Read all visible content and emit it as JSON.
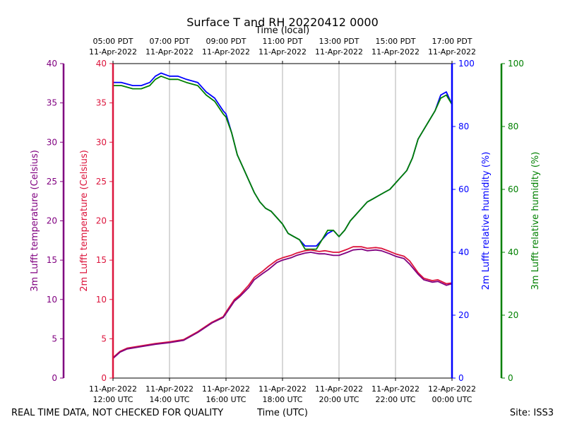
{
  "colors": {
    "t3m": "#800080",
    "t2m": "#dc143c",
    "rh2m": "#0000ff",
    "rh3m": "#008000",
    "grid": "#b0b0b0",
    "frame": "#000000"
  },
  "chart_data": {
    "type": "line",
    "title": "Surface T and RH 20220412 0000",
    "top_axis_title": "Time (local)",
    "bottom_axis_title": "Time (UTC)",
    "footer_left": "REAL TIME DATA, NOT CHECKED FOR QUALITY",
    "footer_right": "Site: ISS3",
    "x_range_utc_hours": [
      12,
      24
    ],
    "time_ticks": [
      {
        "hour": 12,
        "utc_line1": "11-Apr-2022",
        "utc_line2": "12:00 UTC"
      },
      {
        "hour": 14,
        "utc_line1": "11-Apr-2022",
        "utc_line2": "14:00 UTC"
      },
      {
        "hour": 16,
        "utc_line1": "11-Apr-2022",
        "utc_line2": "16:00 UTC"
      },
      {
        "hour": 18,
        "utc_line1": "11-Apr-2022",
        "utc_line2": "18:00 UTC"
      },
      {
        "hour": 20,
        "utc_line1": "11-Apr-2022",
        "utc_line2": "20:00 UTC"
      },
      {
        "hour": 22,
        "utc_line1": "11-Apr-2022",
        "utc_line2": "22:00 UTC"
      },
      {
        "hour": 24,
        "utc_line1": "12-Apr-2022",
        "utc_line2": "00:00 UTC"
      }
    ],
    "local_ticks": [
      {
        "hour": 12,
        "local_line1": "05:00 PDT",
        "local_line2": "11-Apr-2022"
      },
      {
        "hour": 14,
        "local_line1": "07:00 PDT",
        "local_line2": "11-Apr-2022"
      },
      {
        "hour": 16,
        "local_line1": "09:00 PDT",
        "local_line2": "11-Apr-2022"
      },
      {
        "hour": 18,
        "local_line1": "11:00 PDT",
        "local_line2": "11-Apr-2022"
      },
      {
        "hour": 20,
        "local_line1": "13:00 PDT",
        "local_line2": "11-Apr-2022"
      },
      {
        "hour": 22,
        "local_line1": "15:00 PDT",
        "local_line2": "11-Apr-2022"
      },
      {
        "hour": 24,
        "local_line1": "17:00 PDT",
        "local_line2": "11-Apr-2022"
      }
    ],
    "axes": {
      "t3m": {
        "label": "3m Lufft temperature (Celsius)",
        "ylim": [
          0,
          40
        ],
        "ticks": [
          "0",
          "5",
          "10",
          "15",
          "20",
          "25",
          "30",
          "35",
          "40"
        ]
      },
      "t2m": {
        "label": "2m Lufft temperature (Celsius)",
        "ylim": [
          0,
          40
        ],
        "ticks": [
          "0",
          "5",
          "10",
          "15",
          "20",
          "25",
          "30",
          "35",
          "40"
        ]
      },
      "rh2m": {
        "label": "2m Lufft relative humidity (%)",
        "ylim": [
          0,
          100
        ],
        "ticks": [
          "0",
          "20",
          "40",
          "60",
          "80",
          "100"
        ]
      },
      "rh3m": {
        "label": "3m Lufft relative humidity (%)",
        "ylim": [
          0,
          100
        ],
        "ticks": [
          "0",
          "20",
          "40",
          "60",
          "80",
          "100"
        ]
      }
    },
    "series": [
      {
        "name": "3m Lufft temperature",
        "axis": "t3m",
        "x": [
          12.0,
          12.25,
          12.5,
          13.0,
          13.5,
          14.0,
          14.5,
          15.0,
          15.5,
          15.9,
          16.0,
          16.3,
          16.5,
          16.8,
          17.0,
          17.3,
          17.5,
          17.8,
          18.0,
          18.3,
          18.5,
          18.8,
          19.0,
          19.3,
          19.5,
          19.8,
          20.0,
          20.3,
          20.5,
          20.8,
          21.0,
          21.3,
          21.5,
          21.8,
          22.0,
          22.3,
          22.5,
          22.8,
          23.0,
          23.3,
          23.5,
          23.8,
          24.0
        ],
        "y": [
          2.5,
          3.3,
          3.7,
          4.0,
          4.3,
          4.5,
          4.8,
          5.8,
          7.0,
          7.7,
          8.2,
          9.8,
          10.4,
          11.5,
          12.5,
          13.3,
          13.8,
          14.7,
          15.0,
          15.3,
          15.6,
          15.9,
          16.0,
          15.8,
          15.8,
          15.6,
          15.6,
          16.0,
          16.3,
          16.4,
          16.2,
          16.3,
          16.2,
          15.8,
          15.5,
          15.2,
          14.5,
          13.2,
          12.5,
          12.2,
          12.3,
          11.8,
          12.0
        ]
      },
      {
        "name": "2m Lufft temperature",
        "axis": "t2m",
        "x": [
          12.0,
          12.25,
          12.5,
          13.0,
          13.5,
          14.0,
          14.5,
          15.0,
          15.5,
          15.9,
          16.0,
          16.3,
          16.5,
          16.8,
          17.0,
          17.3,
          17.5,
          17.8,
          18.0,
          18.3,
          18.5,
          18.8,
          19.0,
          19.3,
          19.5,
          19.8,
          20.0,
          20.3,
          20.5,
          20.8,
          21.0,
          21.3,
          21.5,
          21.8,
          22.0,
          22.3,
          22.5,
          22.8,
          23.0,
          23.3,
          23.5,
          23.8,
          24.0
        ],
        "y": [
          2.6,
          3.4,
          3.8,
          4.1,
          4.4,
          4.6,
          4.9,
          5.9,
          7.1,
          7.8,
          8.4,
          10.0,
          10.6,
          11.8,
          12.8,
          13.6,
          14.2,
          15.0,
          15.3,
          15.6,
          15.9,
          16.2,
          16.3,
          16.1,
          16.2,
          16.0,
          16.0,
          16.4,
          16.7,
          16.7,
          16.5,
          16.6,
          16.5,
          16.1,
          15.8,
          15.5,
          14.9,
          13.4,
          12.7,
          12.4,
          12.5,
          12.0,
          12.1
        ]
      },
      {
        "name": "2m Lufft relative humidity",
        "axis": "rh2m",
        "x": [
          12.0,
          12.3,
          12.7,
          13.0,
          13.3,
          13.5,
          13.7,
          14.0,
          14.3,
          14.6,
          15.0,
          15.3,
          15.6,
          15.9,
          16.0,
          16.2,
          16.4,
          16.6,
          16.8,
          17.0,
          17.2,
          17.4,
          17.6,
          17.8,
          18.0,
          18.2,
          18.4,
          18.6,
          18.8,
          19.0,
          19.2,
          19.4,
          19.6,
          19.8,
          20.0,
          20.2,
          20.4,
          20.6,
          20.8,
          21.0,
          21.2,
          21.4,
          21.6,
          21.8,
          22.0,
          22.2,
          22.4,
          22.6,
          22.8,
          23.0,
          23.2,
          23.4,
          23.6,
          23.8,
          24.0
        ],
        "y": [
          94,
          94,
          93,
          93,
          94,
          96,
          97,
          96,
          96,
          95,
          94,
          91,
          89,
          85,
          84,
          78,
          71,
          67,
          63,
          59,
          56,
          54,
          53,
          51,
          49,
          46,
          45,
          44,
          42,
          42,
          42,
          44,
          46,
          47,
          45,
          47,
          50,
          52,
          54,
          56,
          57,
          58,
          59,
          60,
          62,
          64,
          66,
          70,
          76,
          79,
          82,
          85,
          90,
          91,
          87
        ]
      },
      {
        "name": "3m Lufft relative humidity",
        "axis": "rh3m",
        "x": [
          12.0,
          12.3,
          12.7,
          13.0,
          13.3,
          13.5,
          13.7,
          14.0,
          14.3,
          14.6,
          15.0,
          15.3,
          15.6,
          15.9,
          16.0,
          16.2,
          16.4,
          16.6,
          16.8,
          17.0,
          17.2,
          17.4,
          17.6,
          17.8,
          18.0,
          18.2,
          18.4,
          18.6,
          18.8,
          19.0,
          19.2,
          19.4,
          19.6,
          19.8,
          20.0,
          20.2,
          20.4,
          20.6,
          20.8,
          21.0,
          21.2,
          21.4,
          21.6,
          21.8,
          22.0,
          22.2,
          22.4,
          22.6,
          22.8,
          23.0,
          23.2,
          23.4,
          23.6,
          23.8,
          24.0
        ],
        "y": [
          93,
          93,
          92,
          92,
          93,
          95,
          96,
          95,
          95,
          94,
          93,
          90,
          88,
          84,
          83,
          78,
          71,
          67,
          63,
          59,
          56,
          54,
          53,
          51,
          49,
          46,
          45,
          44,
          41,
          41,
          41,
          44,
          47,
          47,
          45,
          47,
          50,
          52,
          54,
          56,
          57,
          58,
          59,
          60,
          62,
          64,
          66,
          70,
          76,
          79,
          82,
          85,
          89,
          90,
          87
        ]
      }
    ]
  }
}
